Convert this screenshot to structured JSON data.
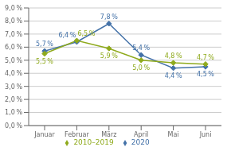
{
  "chart_data": {
    "type": "line",
    "categories": [
      "Januar",
      "Februar",
      "März",
      "April",
      "Mai",
      "Juni"
    ],
    "series": [
      {
        "name": "2020",
        "color": "#4472a8",
        "marker": "diamond",
        "values": [
          5.7,
          6.4,
          7.8,
          5.4,
          4.4,
          4.5
        ],
        "value_labels": [
          "5,7 %",
          "6,4 %",
          "7,8 %",
          "5,4 %",
          "4,4 %",
          "4,5 %"
        ]
      },
      {
        "name": "2010–2019",
        "color": "#8faa1c",
        "marker": "diamond",
        "values": [
          5.5,
          6.5,
          5.9,
          5.0,
          4.8,
          4.7
        ],
        "value_labels": [
          "5,5 %",
          "6,5 %",
          "5,9 %",
          "5,0 %",
          "4,8 %",
          "4,7 %"
        ]
      }
    ],
    "ylim": [
      0.0,
      9.0
    ],
    "yticks": [
      {
        "value": 0.0,
        "label": "0,0 %"
      },
      {
        "value": 1.0,
        "label": "1,0 %"
      },
      {
        "value": 2.0,
        "label": "2,0 %"
      },
      {
        "value": 3.0,
        "label": "3,0 %"
      },
      {
        "value": 4.0,
        "label": "4,0 %"
      },
      {
        "value": 5.0,
        "label": "5,0 %"
      },
      {
        "value": 6.0,
        "label": "6,0 %"
      },
      {
        "value": 7.0,
        "label": "7,0 %"
      },
      {
        "value": 8.0,
        "label": "8,0 %"
      },
      {
        "value": 9.0,
        "label": "9,0 %"
      }
    ],
    "grid": true,
    "legend": "bottom",
    "data_labels": true
  }
}
